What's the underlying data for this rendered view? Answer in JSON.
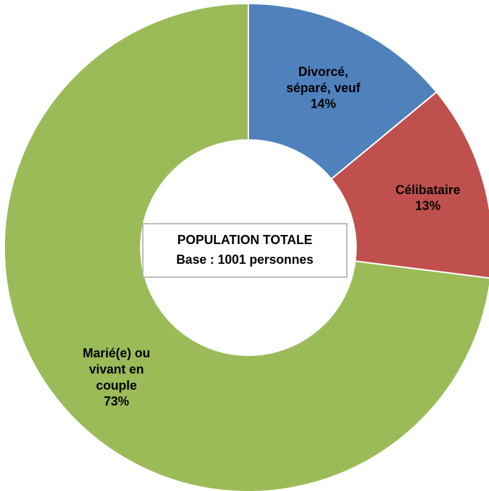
{
  "chart_data": {
    "type": "donut",
    "title": "POPULATION TOTALE",
    "subtitle": "Base : 1001 personnes",
    "categories": [
      "Divorcé,\nséparé, veuf",
      "Célibataire",
      "Marié(e) ou\nvivant en\ncouple"
    ],
    "values": [
      14,
      13,
      73
    ],
    "value_labels": [
      "14%",
      "13%",
      "73%"
    ],
    "colors": [
      "#4f81bd",
      "#c0504d",
      "#9bbb59"
    ]
  }
}
